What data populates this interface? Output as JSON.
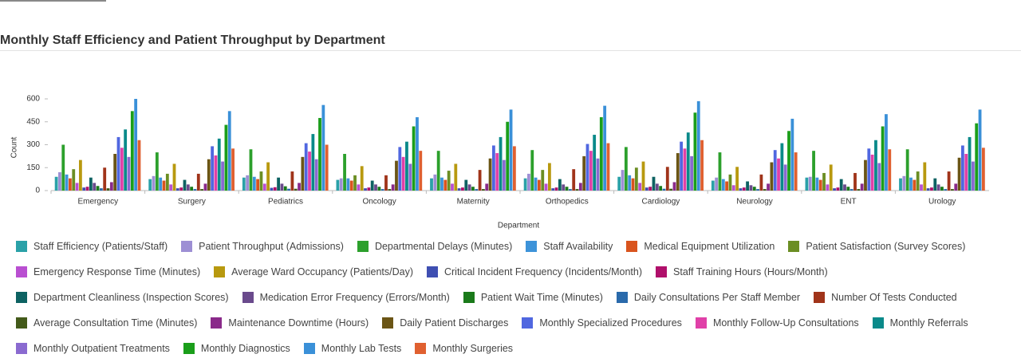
{
  "title": "Monthly Staff Efficiency and Patient Throughput by Department",
  "chart_data": {
    "type": "bar",
    "x_label": "Department",
    "y_label": "Count",
    "categories": [
      "Emergency",
      "Surgery",
      "Pediatrics",
      "Oncology",
      "Maternity",
      "Orthopedics",
      "Cardiology",
      "Neurology",
      "ENT",
      "Urology"
    ],
    "ylim": [
      0,
      600
    ],
    "yticks": [
      0,
      150,
      300,
      450,
      600
    ],
    "series": [
      {
        "name": "Staff Efficiency (Patients/Staff)",
        "color": "#2aa1a8",
        "values": [
          90,
          75,
          85,
          70,
          80,
          80,
          90,
          65,
          85,
          80
        ]
      },
      {
        "name": "Patient Throughput (Admissions)",
        "color": "#9d8fd4",
        "values": [
          120,
          95,
          100,
          80,
          105,
          110,
          135,
          85,
          90,
          95
        ]
      },
      {
        "name": "Departmental Delays (Minutes)",
        "color": "#2ca02c",
        "values": [
          300,
          250,
          270,
          240,
          260,
          265,
          285,
          250,
          260,
          270
        ]
      },
      {
        "name": "Staff Availability",
        "color": "#3d93d9",
        "values": [
          105,
          85,
          90,
          80,
          85,
          85,
          100,
          75,
          85,
          85
        ]
      },
      {
        "name": "Medical Equipment Utilization",
        "color": "#d9541e",
        "values": [
          80,
          65,
          75,
          65,
          70,
          70,
          80,
          60,
          70,
          70
        ]
      },
      {
        "name": "Patient Satisfaction (Survey Scores)",
        "color": "#6b8e23",
        "values": [
          140,
          110,
          125,
          100,
          130,
          135,
          150,
          105,
          115,
          125
        ]
      },
      {
        "name": "Emergency Response Time (Minutes)",
        "color": "#b94fd1",
        "values": [
          50,
          40,
          45,
          40,
          45,
          45,
          50,
          35,
          40,
          40
        ]
      },
      {
        "name": "Average Ward Occupancy (Patients/Day)",
        "color": "#b8990f",
        "values": [
          200,
          175,
          185,
          160,
          175,
          180,
          190,
          155,
          170,
          185
        ]
      },
      {
        "name": "Critical Incident Frequency (Incidents/Month)",
        "color": "#3f4fb2",
        "values": [
          20,
          15,
          18,
          15,
          15,
          15,
          20,
          15,
          15,
          15
        ]
      },
      {
        "name": "Staff Training Hours (Hours/Month)",
        "color": "#b0106b",
        "values": [
          25,
          20,
          22,
          20,
          20,
          20,
          25,
          20,
          20,
          20
        ]
      },
      {
        "name": "Department Cleanliness (Inspection Scores)",
        "color": "#0d6262",
        "values": [
          85,
          70,
          85,
          65,
          70,
          75,
          90,
          60,
          75,
          80
        ]
      },
      {
        "name": "Medication Error Frequency (Errors/Month)",
        "color": "#6a4a8c",
        "values": [
          50,
          40,
          45,
          40,
          40,
          40,
          45,
          35,
          40,
          40
        ]
      },
      {
        "name": "Patient Wait Time (Minutes)",
        "color": "#1a7a1a",
        "values": [
          30,
          25,
          28,
          25,
          25,
          25,
          30,
          25,
          25,
          25
        ]
      },
      {
        "name": "Daily Consultations Per Staff Member",
        "color": "#2a6aab",
        "values": [
          15,
          10,
          12,
          10,
          10,
          10,
          12,
          10,
          10,
          10
        ]
      },
      {
        "name": "Number Of Tests Conducted",
        "color": "#a0341a",
        "values": [
          150,
          110,
          125,
          100,
          135,
          140,
          155,
          105,
          115,
          125
        ]
      },
      {
        "name": "Average Consultation Time (Minutes)",
        "color": "#435a1a",
        "values": [
          15,
          10,
          12,
          10,
          10,
          10,
          12,
          10,
          10,
          10
        ]
      },
      {
        "name": "Maintenance Downtime (Hours)",
        "color": "#8a2a8a",
        "values": [
          55,
          45,
          50,
          40,
          45,
          50,
          55,
          45,
          45,
          45
        ]
      },
      {
        "name": "Daily Patient Discharges",
        "color": "#6b5515",
        "values": [
          240,
          205,
          220,
          195,
          210,
          225,
          245,
          185,
          200,
          215
        ]
      },
      {
        "name": "Monthly Specialized Procedures",
        "color": "#5067e0",
        "values": [
          350,
          290,
          310,
          285,
          295,
          305,
          320,
          265,
          275,
          295
        ]
      },
      {
        "name": "Monthly Follow-Up Consultations",
        "color": "#e040a8",
        "values": [
          280,
          230,
          255,
          220,
          245,
          260,
          275,
          210,
          235,
          240
        ]
      },
      {
        "name": "Monthly Referrals",
        "color": "#0a8a8a",
        "values": [
          400,
          340,
          370,
          320,
          350,
          365,
          380,
          310,
          330,
          350
        ]
      },
      {
        "name": "Monthly Outpatient Treatments",
        "color": "#8a6ad0",
        "values": [
          220,
          190,
          205,
          175,
          200,
          210,
          225,
          170,
          180,
          190
        ]
      },
      {
        "name": "Monthly Diagnostics",
        "color": "#1a9e1a",
        "values": [
          520,
          430,
          475,
          420,
          450,
          480,
          510,
          390,
          420,
          440
        ]
      },
      {
        "name": "Monthly Lab Tests",
        "color": "#3a90d8",
        "values": [
          600,
          520,
          560,
          480,
          530,
          555,
          585,
          470,
          500,
          530
        ]
      },
      {
        "name": "Monthly Surgeries",
        "color": "#e06030",
        "values": [
          330,
          275,
          300,
          260,
          290,
          310,
          330,
          250,
          270,
          280
        ]
      }
    ]
  }
}
